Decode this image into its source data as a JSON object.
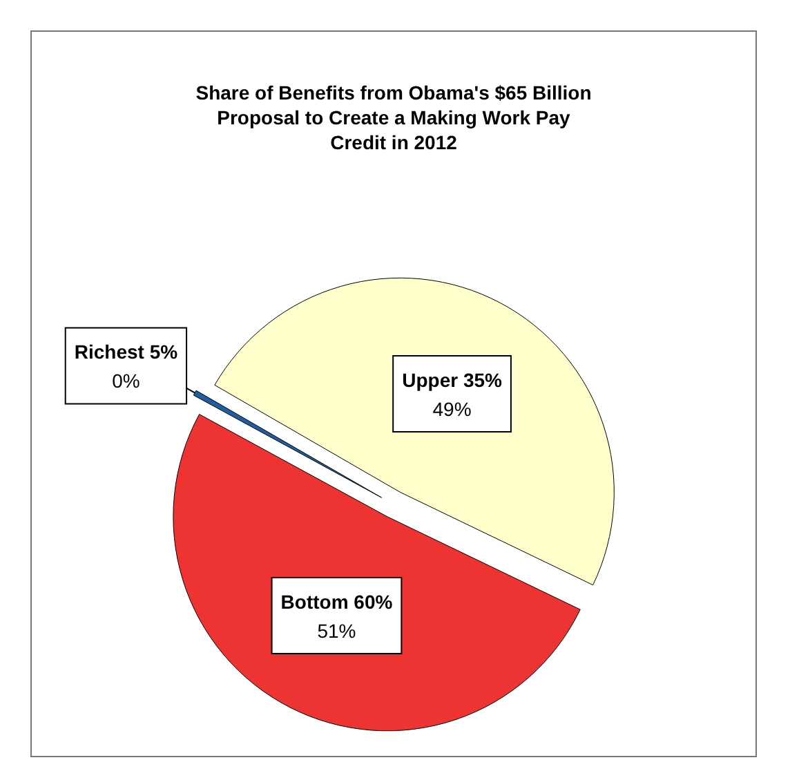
{
  "chart_data": {
    "type": "pie",
    "title": "Share of Benefits from Obama's $65 Billion\nProposal to Create a Making Work Pay\nCredit in 2012",
    "categories": [
      "Upper 35%",
      "Bottom 60%",
      "Richest 5%"
    ],
    "values": [
      49,
      51,
      0.4
    ],
    "value_labels": [
      "49%",
      "51%",
      "0%"
    ],
    "colors": [
      "#ffffcc",
      "#ee3333",
      "#1f5f9f"
    ],
    "legend": false
  }
}
